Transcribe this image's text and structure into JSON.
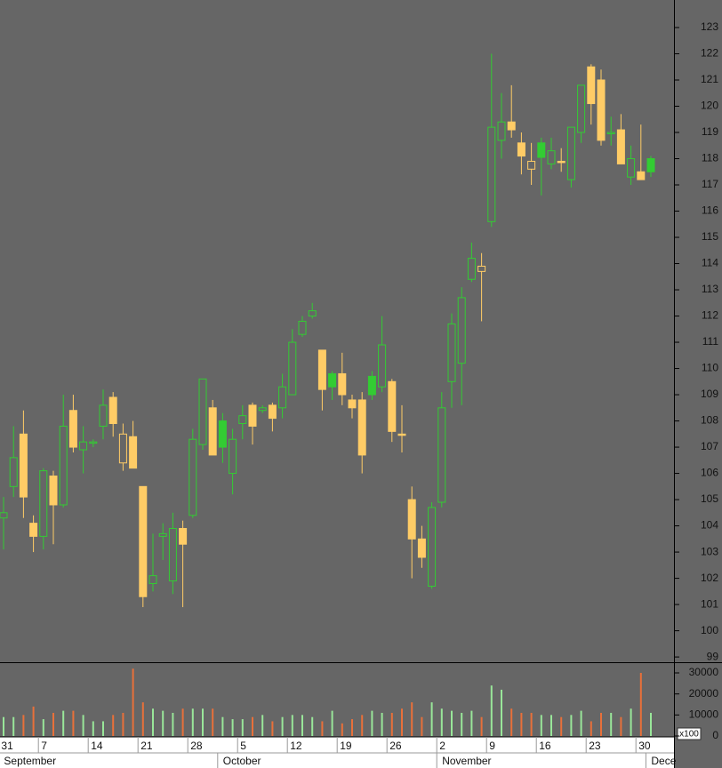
{
  "chart_data": {
    "type": "candlestick",
    "up_color": "#33cc33",
    "down_color": "#ffcc66",
    "volume_up_color": "#99e699",
    "volume_down_color": "#e8703a",
    "categories": [
      "31",
      null,
      null,
      null,
      "7",
      null,
      null,
      null,
      null,
      "14",
      null,
      null,
      null,
      null,
      "21",
      null,
      null,
      null,
      null,
      "28",
      null,
      null,
      null,
      null,
      "5",
      null,
      null,
      null,
      null,
      "12",
      null,
      null,
      null,
      null,
      "19",
      null,
      null,
      null,
      null,
      "26",
      null,
      null,
      null,
      null,
      "2",
      null,
      null,
      null,
      null,
      "9",
      null,
      null,
      null,
      null,
      "16",
      null,
      null,
      null,
      null,
      "23",
      null,
      null,
      null,
      null,
      "30",
      null
    ],
    "month_categories": [
      "September",
      null,
      null,
      null,
      null,
      null,
      null,
      null,
      null,
      null,
      null,
      null,
      null,
      null,
      null,
      null,
      null,
      null,
      null,
      null,
      null,
      null,
      "October",
      null,
      null,
      null,
      null,
      null,
      null,
      null,
      null,
      null,
      null,
      null,
      null,
      null,
      null,
      null,
      null,
      null,
      null,
      null,
      null,
      null,
      "November",
      null,
      null,
      null,
      null,
      null,
      null,
      null,
      null,
      null,
      null,
      null,
      null,
      null,
      null,
      null,
      null,
      null,
      null,
      null,
      null,
      "Dece"
    ],
    "open": [
      104.3,
      105.5,
      107.5,
      104.1,
      103.6,
      105.9,
      104.8,
      108.4,
      106.9,
      107.15,
      107.8,
      108.9,
      106.4,
      107.4,
      105.5,
      101.8,
      103.6,
      101.9,
      103.9,
      104.4,
      107.1,
      108.5,
      108.0,
      106.0,
      107.9,
      108.6,
      108.4,
      108.6,
      108.5,
      109.0,
      111.3,
      112.0,
      110.7,
      109.8,
      109.8,
      108.8,
      108.8,
      109.7,
      109.3,
      109.5,
      107.5,
      105.0,
      103.5,
      101.7,
      104.9,
      109.5,
      110.2,
      113.4,
      113.7,
      115.6,
      118.7,
      119.4,
      118.6,
      117.6,
      118.6,
      117.8,
      117.9,
      117.2,
      119.0,
      121.5,
      121.0,
      118.95,
      119.1,
      117.3,
      117.5,
      118.0
    ],
    "high": [
      105.1,
      107.8,
      108.4,
      104.4,
      106.2,
      106.1,
      109.0,
      109.0,
      107.8,
      107.3,
      109.2,
      109.1,
      107.9,
      108.0,
      105.5,
      103.7,
      104.1,
      104.5,
      104.2,
      107.7,
      109.6,
      108.8,
      108.3,
      107.7,
      108.6,
      108.7,
      108.6,
      108.7,
      109.8,
      111.5,
      112.0,
      112.5,
      110.7,
      109.9,
      110.6,
      109.0,
      109.1,
      109.9,
      112.0,
      109.6,
      108.6,
      105.5,
      104.0,
      104.9,
      109.1,
      112.1,
      113.1,
      114.8,
      114.4,
      122.0,
      120.5,
      120.8,
      119.0,
      118.6,
      118.8,
      118.8,
      118.4,
      119.2,
      120.8,
      121.6,
      121.4,
      119.6,
      119.7,
      118.5,
      119.3,
      118.1
    ],
    "low": [
      103.1,
      105.1,
      104.3,
      103.0,
      103.1,
      103.3,
      104.7,
      106.8,
      106.0,
      107.0,
      107.3,
      107.4,
      106.1,
      106.2,
      100.9,
      101.5,
      102.7,
      101.4,
      100.9,
      104.3,
      106.9,
      106.7,
      106.4,
      105.2,
      107.3,
      107.1,
      108.3,
      107.6,
      108.1,
      109.0,
      111.2,
      111.9,
      108.4,
      108.8,
      108.6,
      108.1,
      106.0,
      108.8,
      109.1,
      107.2,
      106.8,
      102.0,
      102.4,
      101.6,
      104.7,
      108.5,
      108.6,
      113.3,
      111.8,
      115.4,
      118.0,
      118.8,
      117.4,
      117.0,
      116.6,
      117.6,
      117.5,
      116.9,
      118.6,
      119.3,
      118.5,
      118.5,
      117.8,
      117.0,
      117.2,
      117.3
    ],
    "close": [
      104.5,
      106.6,
      105.1,
      103.6,
      106.1,
      104.8,
      107.8,
      107.0,
      107.2,
      107.2,
      108.6,
      107.9,
      107.5,
      106.2,
      101.3,
      102.1,
      103.7,
      103.9,
      103.3,
      107.3,
      109.6,
      106.7,
      107.0,
      107.3,
      108.2,
      107.8,
      108.5,
      108.1,
      109.3,
      111.0,
      111.8,
      112.2,
      109.2,
      109.3,
      109.0,
      108.5,
      106.7,
      109.0,
      110.9,
      107.6,
      107.45,
      103.5,
      102.8,
      104.7,
      108.5,
      111.7,
      112.7,
      114.2,
      113.9,
      119.2,
      119.4,
      119.1,
      118.1,
      117.9,
      118.05,
      118.3,
      117.85,
      119.2,
      120.8,
      120.1,
      118.7,
      119.0,
      117.8,
      118.0,
      117.2,
      117.5
    ],
    "volume": [
      9000,
      9000,
      10000,
      14000,
      8000,
      11000,
      12000,
      12000,
      10000,
      7000,
      7000,
      10000,
      11000,
      32000,
      16000,
      13000,
      12000,
      11000,
      13000,
      13000,
      13000,
      13000,
      9000,
      8000,
      8000,
      9000,
      10000,
      7000,
      9000,
      10000,
      10000,
      9000,
      7000,
      12000,
      6000,
      8000,
      10000,
      12000,
      11000,
      11000,
      13000,
      16000,
      9000,
      16000,
      13000,
      12000,
      11000,
      12000,
      9000,
      24000,
      22000,
      13000,
      11000,
      11000,
      10000,
      10000,
      9000,
      10000,
      12000,
      7000,
      11000,
      11000,
      9000,
      13000,
      30000,
      11000
    ],
    "ylim": [
      98.8,
      124.05
    ],
    "yticks": [
      99,
      100,
      101,
      102,
      103,
      104,
      105,
      106,
      107,
      108,
      109,
      110,
      111,
      112,
      113,
      114,
      115,
      116,
      117,
      118,
      119,
      120,
      121,
      122,
      123
    ],
    "volume_ylim": [
      0,
      34650
    ],
    "volume_yticks": [
      0,
      10000,
      20000,
      30000
    ],
    "volume_unit_label": "x100"
  }
}
